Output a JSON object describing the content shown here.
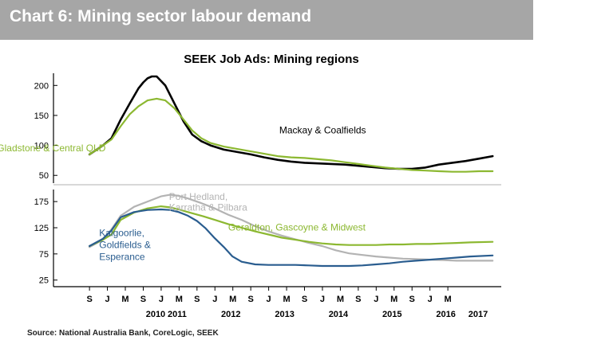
{
  "header": {
    "title": "Chart 6: Mining sector labour demand"
  },
  "colors": {
    "black": "#000000",
    "green": "#8cb831",
    "grey": "#b3b3b3",
    "blue": "#2a5d8f",
    "header_bg": "#a6a6a6"
  },
  "chart_data": {
    "type": "line",
    "title": "SEEK Job Ads: Mining regions",
    "source": "Source: National Australia Bank, CoreLogic, SEEK",
    "x_ticks": [
      "S",
      "J",
      "M",
      "S",
      "J",
      "M",
      "S",
      "J",
      "M",
      "S",
      "J",
      "M",
      "S",
      "J",
      "M",
      "S",
      "J",
      "M",
      "S",
      "J",
      "M"
    ],
    "x_years": [
      {
        "label": "2010",
        "t": 2010.9
      },
      {
        "label": "2011",
        "t": 2011.3
      },
      {
        "label": "2012",
        "t": 2012.3
      },
      {
        "label": "2013",
        "t": 2013.3
      },
      {
        "label": "2014",
        "t": 2014.3
      },
      {
        "label": "2015",
        "t": 2015.3
      },
      {
        "label": "2016",
        "t": 2016.3
      },
      {
        "label": "2017",
        "t": 2016.9
      }
    ],
    "panels": [
      {
        "id": "top",
        "ylim": [
          45,
          215
        ],
        "yticks": [
          50,
          100,
          150,
          200
        ],
        "series": [
          {
            "name": "Mackay & Coalfields",
            "color": "black",
            "t": [
              2009.67,
              2009.92,
              2010.08,
              2010.25,
              2010.42,
              2010.58,
              2010.67,
              2010.75,
              2010.83,
              2010.92,
              2011.08,
              2011.25,
              2011.42,
              2011.58,
              2011.75,
              2011.92,
              2012.17,
              2012.42,
              2012.67,
              2012.92,
              2013.17,
              2013.42,
              2013.67,
              2013.92,
              2014.17,
              2014.42,
              2014.67,
              2014.92,
              2015.17,
              2015.42,
              2015.67,
              2015.92,
              2016.17,
              2016.42,
              2016.67,
              2016.92,
              2017.17
            ],
            "v": [
              85,
              100,
              112,
              143,
              170,
              195,
              205,
              212,
              215,
              215,
              200,
              170,
              140,
              118,
              107,
              100,
              93,
              89,
              85,
              80,
              76,
              73,
              71,
              70,
              69,
              68,
              66,
              64,
              62,
              61,
              61,
              63,
              68,
              71,
              74,
              78,
              82
            ]
          },
          {
            "name": "Gladstone & Central QLD",
            "color": "green",
            "t": [
              2009.67,
              2009.92,
              2010.08,
              2010.25,
              2010.42,
              2010.58,
              2010.75,
              2010.92,
              2011.08,
              2011.25,
              2011.42,
              2011.58,
              2011.75,
              2011.92,
              2012.17,
              2012.42,
              2012.67,
              2012.92,
              2013.17,
              2013.42,
              2013.67,
              2013.92,
              2014.17,
              2014.42,
              2014.67,
              2014.92,
              2015.17,
              2015.42,
              2015.67,
              2015.92,
              2016.17,
              2016.42,
              2016.67,
              2016.92,
              2017.17
            ],
            "v": [
              85,
              100,
              110,
              132,
              152,
              165,
              175,
              178,
              175,
              162,
              143,
              125,
              112,
              104,
              98,
              94,
              90,
              86,
              82,
              80,
              79,
              77,
              75,
              72,
              69,
              66,
              63,
              61,
              59,
              58,
              57,
              56,
              56,
              57,
              57
            ]
          }
        ]
      },
      {
        "id": "bottom",
        "ylim": [
          20,
          195
        ],
        "yticks": [
          25,
          75,
          125,
          175
        ],
        "series": [
          {
            "name": "Port Hedland, Karratha & Pilbara",
            "color": "grey",
            "t": [
              2009.67,
              2009.92,
              2010.08,
              2010.25,
              2010.5,
              2010.75,
              2011.0,
              2011.17,
              2011.33,
              2011.5,
              2011.75,
              2012.0,
              2012.25,
              2012.5,
              2012.75,
              2013.0,
              2013.25,
              2013.5,
              2013.75,
              2014.0,
              2014.25,
              2014.5,
              2014.75,
              2015.0,
              2015.25,
              2015.5,
              2015.75,
              2016.0,
              2016.25,
              2016.5,
              2016.75,
              2017.17
            ],
            "v": [
              88,
              102,
              122,
              148,
              165,
              175,
              185,
              188,
              186,
              181,
              172,
              162,
              150,
              140,
              128,
              118,
              110,
              103,
              96,
              90,
              82,
              76,
              73,
              70,
              68,
              66,
              65,
              64,
              63,
              62,
              62,
              62
            ]
          },
          {
            "name": "Geraldton, Gascoyne & Midwest",
            "color": "green",
            "t": [
              2009.67,
              2009.92,
              2010.08,
              2010.25,
              2010.5,
              2010.75,
              2011.0,
              2011.17,
              2011.33,
              2011.5,
              2011.75,
              2012.0,
              2012.25,
              2012.5,
              2012.75,
              2013.0,
              2013.25,
              2013.5,
              2013.75,
              2014.0,
              2014.25,
              2014.5,
              2014.75,
              2015.0,
              2015.25,
              2015.5,
              2015.75,
              2016.0,
              2016.25,
              2016.5,
              2016.75,
              2017.17
            ],
            "v": [
              90,
              102,
              112,
              140,
              154,
              162,
              166,
              164,
              160,
              155,
              148,
              140,
              132,
              125,
              118,
              112,
              106,
              102,
              98,
              95,
              93,
              92,
              92,
              92,
              93,
              93,
              94,
              94,
              95,
              96,
              97,
              98
            ]
          },
          {
            "name": "Kalgoorlie, Goldfields & Esperance",
            "color": "blue",
            "t": [
              2009.67,
              2009.92,
              2010.08,
              2010.25,
              2010.5,
              2010.75,
              2011.0,
              2011.17,
              2011.33,
              2011.5,
              2011.67,
              2011.83,
              2012.0,
              2012.17,
              2012.33,
              2012.5,
              2012.75,
              2013.0,
              2013.25,
              2013.5,
              2013.75,
              2014.0,
              2014.25,
              2014.5,
              2014.75,
              2015.0,
              2015.25,
              2015.5,
              2015.75,
              2016.0,
              2016.25,
              2016.5,
              2016.75,
              2017.17
            ],
            "v": [
              90,
              104,
              120,
              145,
              155,
              159,
              160,
              159,
              155,
              148,
              138,
              124,
              105,
              88,
              70,
              60,
              55,
              54,
              54,
              54,
              53,
              52,
              52,
              52,
              53,
              55,
              57,
              60,
              62,
              64,
              66,
              68,
              70,
              72
            ]
          }
        ]
      }
    ],
    "labels": [
      {
        "text": "Mackay & Coalfields",
        "color": "black",
        "t": 2013.2,
        "v": 120,
        "panel": "top",
        "anchor": "start"
      },
      {
        "text": "Gladstone & Central QLD",
        "color": "green",
        "t": 2007.95,
        "v": 90,
        "panel": "top",
        "anchor": "start"
      },
      {
        "text": "Port Hedland,",
        "color": "grey",
        "t": 2011.15,
        "v": 178,
        "panel": "bottom",
        "anchor": "start"
      },
      {
        "text": "Karratha & Pilbara",
        "color": "grey",
        "t": 2011.15,
        "v": 158,
        "panel": "bottom",
        "anchor": "start"
      },
      {
        "text": "Geraldton, Gascoyne & Midwest",
        "color": "green",
        "t": 2012.25,
        "v": 120,
        "panel": "bottom",
        "anchor": "start"
      },
      {
        "text": "Kalgoorlie,",
        "color": "blue",
        "t": 2009.85,
        "v": 109,
        "panel": "bottom",
        "anchor": "start"
      },
      {
        "text": "Goldfields &",
        "color": "blue",
        "t": 2009.85,
        "v": 86,
        "panel": "bottom",
        "anchor": "start"
      },
      {
        "text": "Esperance",
        "color": "blue",
        "t": 2009.85,
        "v": 63,
        "panel": "bottom",
        "anchor": "start"
      }
    ]
  }
}
